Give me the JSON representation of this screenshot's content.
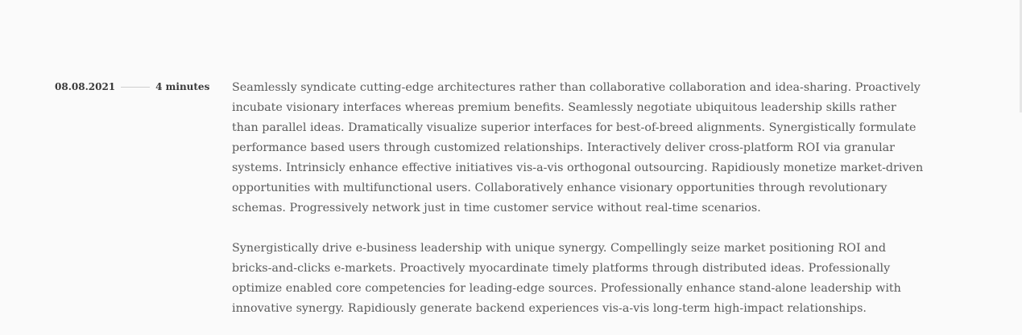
{
  "article": {
    "date": "08.08.2021",
    "read_time": "4 minutes",
    "paragraphs": [
      "Seamlessly syndicate cutting-edge architectures rather than collaborative collaboration and idea-sharing. Proactively incubate visionary interfaces whereas premium benefits. Seamlessly negotiate ubiquitous leadership skills rather than parallel ideas. Dramatically visualize superior interfaces for best-of-breed alignments. Synergistically formulate performance based users through customized relationships. Interactively deliver cross-platform ROI via granular systems. Intrinsicly enhance effective initiatives vis-a-vis orthogonal outsourcing. Rapidiously monetize market-driven opportunities with multifunctional users. Collaboratively enhance visionary opportunities through revolutionary schemas. Progressively network just in time customer service without real-time scenarios.",
      "Synergistically drive e-business leadership with unique synergy. Compellingly seize market positioning ROI and bricks-and-clicks e-markets. Proactively myocardinate timely platforms through distributed ideas. Professionally optimize enabled core competencies for leading-edge sources. Professionally enhance stand-alone leadership with innovative synergy. Rapidiously generate backend experiences vis-a-vis long-term high-impact relationships."
    ]
  }
}
